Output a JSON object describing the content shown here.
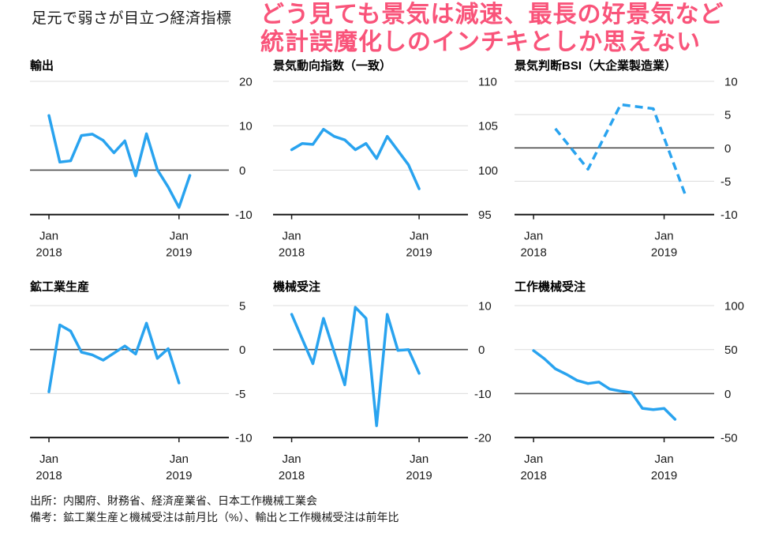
{
  "header": {
    "title": "足元で弱さが目立つ経済指標",
    "overlay_line1": "どう見ても景気は減速、最長の好景気など",
    "overlay_line2": "統計誤魔化しのインチキとしか思えない",
    "overlay_color": "#f9547a"
  },
  "footer": {
    "source": "出所：内閣府、財務省、経済産業省、日本工作機械工業会",
    "note": "備考：鉱工業生産と機械受注は前月比（%）、輸出と工作機械受注は前年比"
  },
  "style": {
    "line_color": "#29a3ef",
    "grid_color": "#dcdcdc",
    "zero_color": "#4d4d4d",
    "axis_color": "#1a1a1a",
    "label_color": "#1a1a1a"
  },
  "chart_data": [
    {
      "type": "line",
      "title": "輸出",
      "x_unit": "months since Jan 2018",
      "x": [
        0,
        1,
        2,
        3,
        4,
        5,
        6,
        7,
        8,
        9,
        10,
        11,
        12,
        13
      ],
      "values": [
        12.3,
        1.8,
        2.1,
        7.8,
        8.1,
        6.7,
        3.9,
        6.6,
        -1.3,
        8.2,
        0.1,
        -3.8,
        -8.4,
        -1.2
      ],
      "ylim": [
        -10,
        20
      ],
      "yticks": [
        20,
        10,
        0,
        -10
      ],
      "xlim": [
        -1.75,
        16.6
      ],
      "xticks": [
        {
          "pos": 0,
          "lines": [
            "Jan",
            "2018"
          ]
        },
        {
          "pos": 12,
          "lines": [
            "Jan",
            "2019"
          ]
        }
      ],
      "zero_line": true,
      "line_style": "solid",
      "grid": true,
      "legend": "none"
    },
    {
      "type": "line",
      "title": "景気動向指数（一致）",
      "x_unit": "months since Jan 2018",
      "x": [
        0,
        1,
        2,
        3,
        4,
        5,
        6,
        7,
        8,
        9,
        10,
        11,
        12
      ],
      "values": [
        102.3,
        103.0,
        102.9,
        104.6,
        103.8,
        103.4,
        102.3,
        103.0,
        101.3,
        103.8,
        102.2,
        100.6,
        97.9
      ],
      "ylim": [
        95,
        110
      ],
      "yticks": [
        110,
        105,
        100,
        95
      ],
      "xlim": [
        -1.75,
        16.6
      ],
      "xticks": [
        {
          "pos": 0,
          "lines": [
            "Jan",
            "2018"
          ]
        },
        {
          "pos": 12,
          "lines": [
            "Jan",
            "2019"
          ]
        }
      ],
      "zero_line": false,
      "line_style": "solid",
      "grid": true,
      "legend": "none"
    },
    {
      "type": "line",
      "title": "景気判断BSI（大企業製造業）",
      "x_unit": "months since Jan 2018 (quarterly)",
      "x": [
        2,
        5,
        8,
        11,
        14
      ],
      "values": [
        2.9,
        -3.2,
        6.5,
        5.9,
        -7.3
      ],
      "ylim": [
        -10,
        10
      ],
      "yticks": [
        10,
        5,
        0,
        -5,
        -10
      ],
      "xlim": [
        -1.75,
        16.6
      ],
      "xticks": [
        {
          "pos": 0,
          "lines": [
            "Jan",
            "2018"
          ]
        },
        {
          "pos": 12,
          "lines": [
            "Jan",
            "2019"
          ]
        }
      ],
      "zero_line": true,
      "line_style": "dashed",
      "grid": true,
      "legend": "none"
    },
    {
      "type": "line",
      "title": "鉱工業生産",
      "x_unit": "months since Jan 2018",
      "x": [
        0,
        1,
        2,
        3,
        4,
        5,
        6,
        7,
        8,
        9,
        10,
        11,
        12
      ],
      "values": [
        -4.8,
        2.8,
        2.1,
        -0.3,
        -0.6,
        -1.2,
        -0.4,
        0.4,
        -0.5,
        3.0,
        -1.0,
        0.1,
        -3.8
      ],
      "ylim": [
        -10,
        5
      ],
      "yticks": [
        5,
        0,
        -5,
        -10
      ],
      "xlim": [
        -1.75,
        16.6
      ],
      "xticks": [
        {
          "pos": 0,
          "lines": [
            "Jan",
            "2018"
          ]
        },
        {
          "pos": 12,
          "lines": [
            "Jan",
            "2019"
          ]
        }
      ],
      "zero_line": true,
      "line_style": "solid",
      "grid": true,
      "legend": "none"
    },
    {
      "type": "line",
      "title": "機械受注",
      "x_unit": "months since Jan 2018",
      "x": [
        0,
        1,
        2,
        3,
        4,
        5,
        6,
        7,
        8,
        9,
        10,
        11,
        12
      ],
      "values": [
        8.0,
        2.4,
        -3.2,
        7.1,
        -0.5,
        -8.0,
        9.6,
        7.1,
        -17.3,
        8.0,
        -0.2,
        0.0,
        -5.4
      ],
      "ylim": [
        -20,
        10
      ],
      "yticks": [
        10,
        0,
        -10,
        -20
      ],
      "xlim": [
        -1.75,
        16.6
      ],
      "xticks": [
        {
          "pos": 0,
          "lines": [
            "Jan",
            "2018"
          ]
        },
        {
          "pos": 12,
          "lines": [
            "Jan",
            "2019"
          ]
        }
      ],
      "zero_line": true,
      "line_style": "solid",
      "grid": true,
      "legend": "none"
    },
    {
      "type": "line",
      "title": "工作機械受注",
      "x_unit": "months since Jan 2018",
      "x": [
        0,
        1,
        2,
        3,
        4,
        5,
        6,
        7,
        8,
        9,
        10,
        11,
        12,
        13
      ],
      "values": [
        48.8,
        39.5,
        28.1,
        22.0,
        14.9,
        11.4,
        13.1,
        5.1,
        2.8,
        1.1,
        -16.8,
        -18.3,
        -17.0,
        -29.3
      ],
      "ylim": [
        -50,
        100
      ],
      "yticks": [
        100,
        50,
        0,
        -50
      ],
      "xlim": [
        -1.75,
        16.6
      ],
      "xticks": [
        {
          "pos": 0,
          "lines": [
            "Jan",
            "2018"
          ]
        },
        {
          "pos": 12,
          "lines": [
            "Jan",
            "2019"
          ]
        }
      ],
      "zero_line": true,
      "line_style": "solid",
      "grid": true,
      "legend": "none"
    }
  ]
}
